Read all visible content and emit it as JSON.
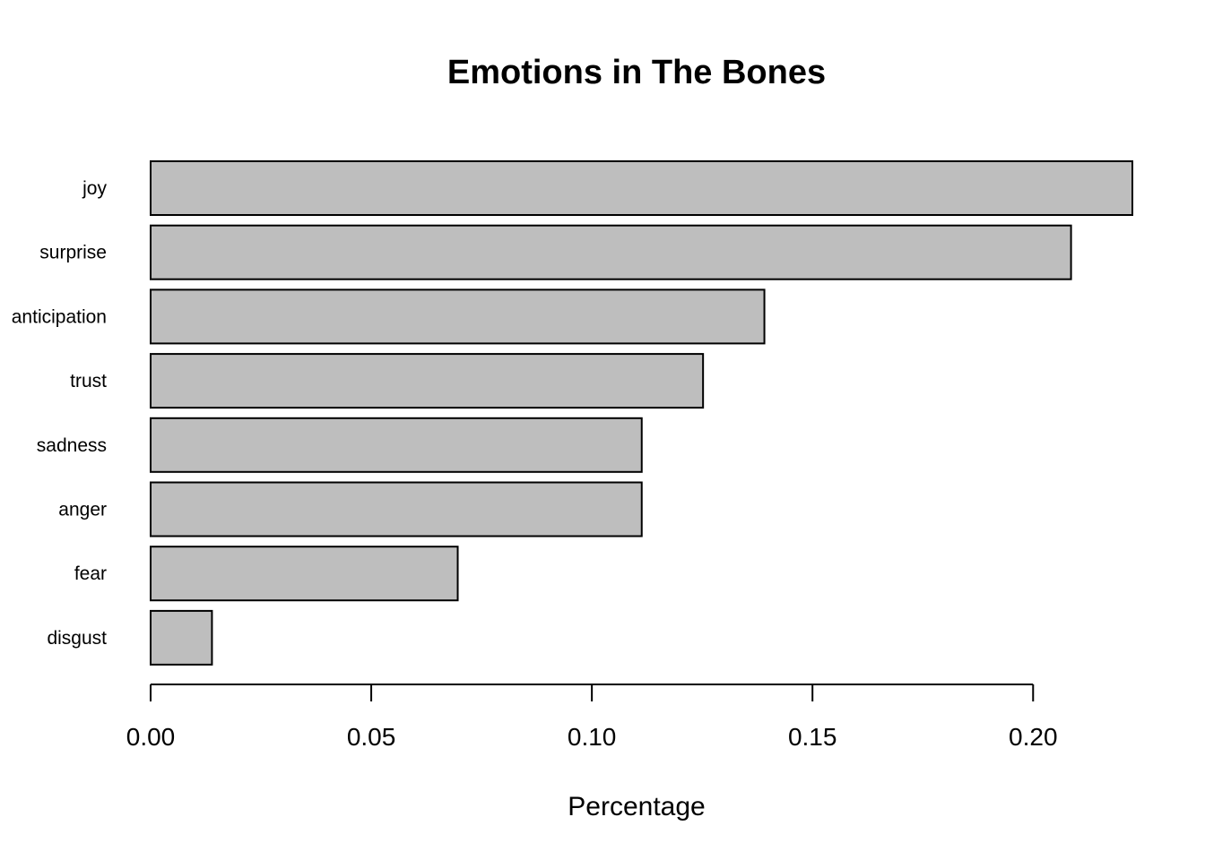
{
  "chart_data": {
    "type": "bar",
    "orientation": "horizontal",
    "title": "Emotions in The Bones",
    "xlabel": "Percentage",
    "ylabel": "",
    "categories": [
      "joy",
      "surprise",
      "anticipation",
      "trust",
      "sadness",
      "anger",
      "fear",
      "disgust"
    ],
    "values": [
      0.2225,
      0.2086,
      0.1391,
      0.1252,
      0.1113,
      0.1113,
      0.0696,
      0.0139
    ],
    "xlim": [
      0,
      0.2225
    ],
    "x_ticks": [
      0.0,
      0.05,
      0.1,
      0.15,
      0.2
    ],
    "x_tick_labels": [
      "0.00",
      "0.05",
      "0.10",
      "0.15",
      "0.20"
    ],
    "bar_color": "#bebebe",
    "grid": false,
    "legend": "none"
  }
}
